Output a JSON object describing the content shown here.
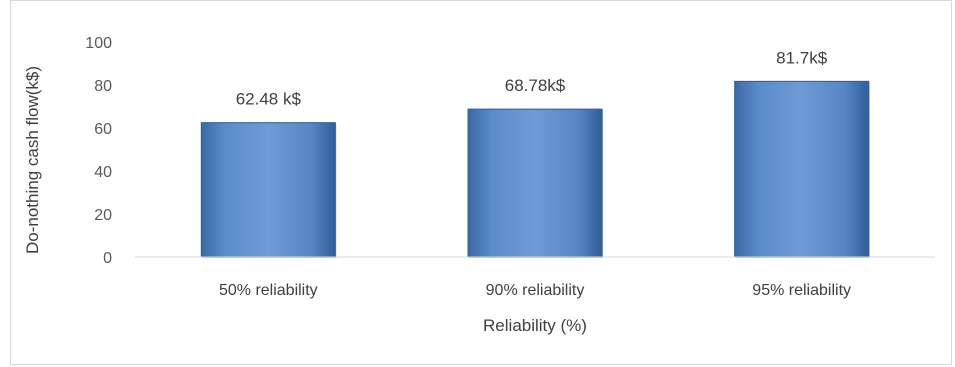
{
  "chart_data": {
    "type": "bar",
    "categories": [
      "50% reliability",
      "90% reliability",
      "95% reliability"
    ],
    "values": [
      62.48,
      68.78,
      81.7
    ],
    "data_labels": [
      "62.48 k$",
      "68.78k$",
      "81.7k$"
    ],
    "title": "",
    "xlabel": "Reliability (%)",
    "ylabel": "Do-nothing cash flow(k$)",
    "ylim": [
      0,
      100
    ],
    "yticks": [
      "0",
      "20",
      "40",
      "60",
      "80",
      "100"
    ],
    "grid": false,
    "legend": "none",
    "colors": {
      "bar": "#4f81bd",
      "bar_dark": "#2c5d97",
      "bar_light": "#6f9bd2"
    }
  }
}
